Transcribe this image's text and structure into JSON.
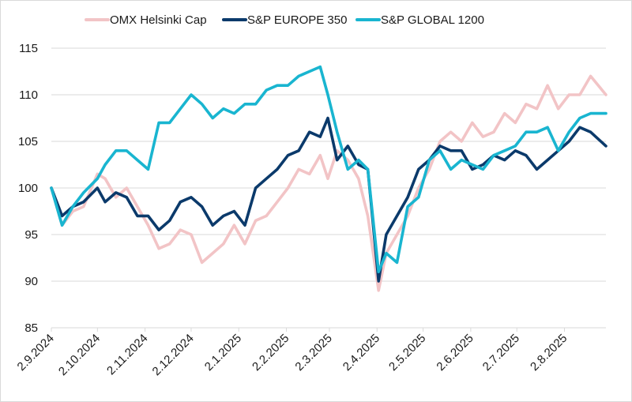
{
  "chart_data": {
    "type": "line",
    "title": "",
    "xlabel": "",
    "ylabel": "",
    "ylim": [
      85,
      115
    ],
    "yticks": [
      "85",
      "90",
      "95",
      "100",
      "105",
      "110",
      "115"
    ],
    "grid": true,
    "legend_position": "top",
    "x_start_date": "2.9.2024",
    "x_range_days": [
      0,
      361
    ],
    "xticks": [
      {
        "label": "2.9.2024",
        "day": 0
      },
      {
        "label": "2.10.2024",
        "day": 30
      },
      {
        "label": "2.11.2024",
        "day": 61
      },
      {
        "label": "2.12.2024",
        "day": 91
      },
      {
        "label": "2.1.2025",
        "day": 122
      },
      {
        "label": "2.2.2025",
        "day": 153
      },
      {
        "label": "2.3.2025",
        "day": 181
      },
      {
        "label": "2.4.2025",
        "day": 212
      },
      {
        "label": "2.5.2025",
        "day": 242
      },
      {
        "label": "2.6.2025",
        "day": 273
      },
      {
        "label": "2.7.2025",
        "day": 303
      },
      {
        "label": "2.8.2025",
        "day": 334
      }
    ],
    "x_days": [
      0,
      7,
      14,
      21,
      30,
      35,
      42,
      49,
      56,
      63,
      70,
      77,
      84,
      91,
      98,
      105,
      112,
      119,
      126,
      133,
      140,
      147,
      154,
      161,
      168,
      175,
      180,
      186,
      193,
      200,
      206,
      213,
      218,
      225,
      232,
      239,
      246,
      253,
      260,
      267,
      274,
      281,
      288,
      295,
      302,
      309,
      316,
      323,
      330,
      337,
      344,
      351,
      361
    ],
    "series": [
      {
        "name": "OMX Helsinki Cap",
        "color": "#f2c4c6",
        "values": [
          100,
          96,
          97.5,
          98,
          101.5,
          101,
          99,
          100,
          98,
          96,
          93.5,
          94,
          95.5,
          95,
          92,
          93,
          94,
          96,
          94,
          96.5,
          97,
          98.5,
          100,
          102,
          101.5,
          103.5,
          101,
          104,
          103,
          101,
          97,
          89,
          93,
          95,
          97,
          100,
          102,
          105,
          106,
          105,
          107,
          105.5,
          106,
          108,
          107,
          109,
          108.5,
          111,
          108.5,
          110,
          110,
          112,
          110
        ]
      },
      {
        "name": "S&P EUROPE 350",
        "color": "#0b3a6b",
        "values": [
          100,
          97,
          98,
          98.5,
          100,
          98.5,
          99.5,
          99,
          97,
          97,
          95.5,
          96.5,
          98.5,
          99,
          98,
          96,
          97,
          97.5,
          96,
          100,
          101,
          102,
          103.5,
          104,
          106,
          105.5,
          107.5,
          103,
          104.5,
          102.5,
          102,
          90,
          95,
          97,
          99,
          102,
          103,
          104.5,
          104,
          104,
          102,
          102.5,
          103.5,
          103,
          104,
          103.5,
          102,
          103,
          104,
          105,
          106.5,
          106,
          104.5
        ]
      },
      {
        "name": "S&P GLOBAL 1200",
        "color": "#19b5d0",
        "values": [
          100,
          96,
          98,
          99.5,
          101,
          102.5,
          104,
          104,
          103,
          102,
          107,
          107,
          108.5,
          110,
          109,
          107.5,
          108.5,
          108,
          109,
          109,
          110.5,
          111,
          111,
          112,
          112.5,
          113,
          110,
          106,
          102,
          103,
          102,
          91,
          93,
          92,
          98,
          99,
          103,
          104,
          102,
          103,
          102.5,
          102,
          103.5,
          104,
          104.5,
          106,
          106,
          106.5,
          104,
          106,
          107.5,
          108,
          108
        ]
      }
    ]
  }
}
